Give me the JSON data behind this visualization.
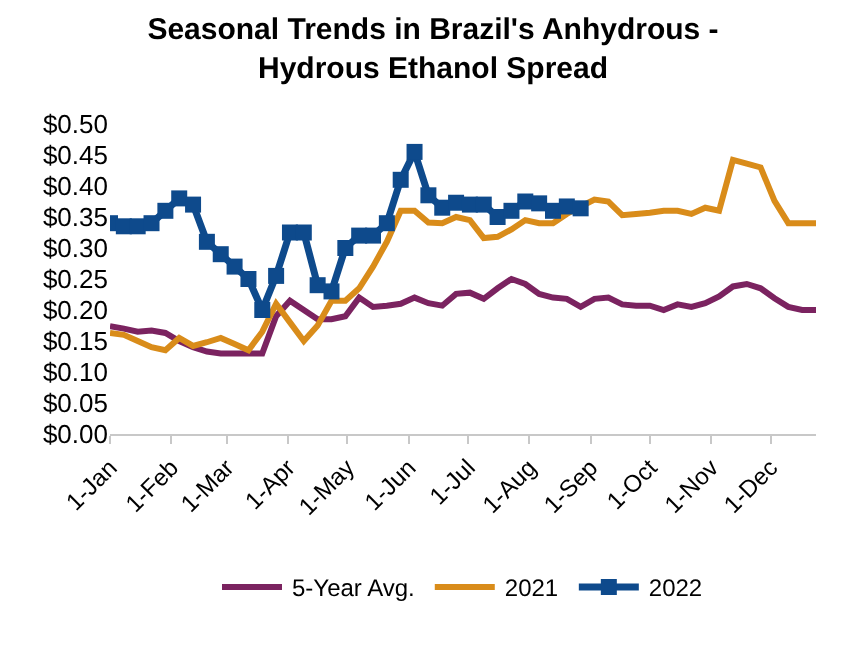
{
  "chart_data": {
    "type": "line",
    "title": "Seasonal Trends in Brazil's Anhydrous -\nHydrous Ethanol Spread",
    "x": [
      "--01-01",
      "--01-08",
      "--01-15",
      "--01-22",
      "--01-29",
      "--02-05",
      "--02-12",
      "--02-19",
      "--02-26",
      "--03-05",
      "--03-12",
      "--03-19",
      "--03-26",
      "--04-02",
      "--04-09",
      "--04-16",
      "--04-23",
      "--04-30",
      "--05-07",
      "--05-14",
      "--05-21",
      "--05-28",
      "--06-04",
      "--06-11",
      "--06-18",
      "--06-25",
      "--07-02",
      "--07-09",
      "--07-16",
      "--07-23",
      "--07-30",
      "--08-06",
      "--08-13",
      "--08-20",
      "--08-27",
      "--09-03",
      "--09-10",
      "--09-17",
      "--09-24",
      "--10-01",
      "--10-08",
      "--10-15",
      "--10-22",
      "--10-29",
      "--11-05",
      "--11-12",
      "--11-19",
      "--11-26",
      "--12-03",
      "--12-10",
      "--12-17",
      "--12-24"
    ],
    "series": [
      {
        "name": "5-Year Avg.",
        "color": "#7b2360",
        "marker": "none",
        "values": [
          0.174,
          0.17,
          0.165,
          0.167,
          0.163,
          0.15,
          0.14,
          0.133,
          0.13,
          0.13,
          0.13,
          0.13,
          0.19,
          0.215,
          0.2,
          0.185,
          0.185,
          0.19,
          0.22,
          0.205,
          0.207,
          0.21,
          0.22,
          0.211,
          0.207,
          0.226,
          0.228,
          0.218,
          0.235,
          0.25,
          0.242,
          0.226,
          0.22,
          0.218,
          0.205,
          0.218,
          0.22,
          0.209,
          0.207,
          0.207,
          0.2,
          0.209,
          0.205,
          0.211,
          0.222,
          0.238,
          0.242,
          0.235,
          0.219,
          0.205,
          0.2,
          0.2
        ]
      },
      {
        "name": "2021",
        "color": "#d98c1a",
        "marker": "none",
        "values": [
          0.163,
          0.16,
          0.15,
          0.14,
          0.135,
          0.155,
          0.142,
          0.148,
          0.155,
          0.145,
          0.135,
          0.165,
          0.21,
          0.18,
          0.15,
          0.175,
          0.215,
          0.215,
          0.235,
          0.27,
          0.31,
          0.36,
          0.36,
          0.341,
          0.34,
          0.35,
          0.345,
          0.316,
          0.318,
          0.33,
          0.345,
          0.34,
          0.34,
          0.355,
          0.367,
          0.378,
          0.375,
          0.353,
          0.355,
          0.357,
          0.36,
          0.36,
          0.355,
          0.365,
          0.36,
          0.442,
          0.436,
          0.43,
          0.376,
          0.34,
          0.34,
          0.34
        ]
      },
      {
        "name": "2022",
        "color": "#0e4a8c",
        "marker": "square",
        "x": [
          "--01-01",
          "--01-08",
          "--01-15",
          "--01-22",
          "--01-29",
          "--02-05",
          "--02-12",
          "--02-19",
          "--02-26",
          "--03-05",
          "--03-12",
          "--03-19",
          "--03-26",
          "--04-02",
          "--04-09",
          "--04-16",
          "--04-23",
          "--04-30",
          "--05-07",
          "--05-14",
          "--05-21",
          "--05-28",
          "--06-04",
          "--06-11",
          "--06-18",
          "--06-25",
          "--07-02",
          "--07-09",
          "--07-16",
          "--07-23",
          "--07-30",
          "--08-06",
          "--08-13",
          "--08-20",
          "--08-27"
        ],
        "values": [
          0.34,
          0.335,
          0.335,
          0.34,
          0.36,
          0.38,
          0.37,
          0.31,
          0.29,
          0.27,
          0.25,
          0.2,
          0.255,
          0.325,
          0.325,
          0.24,
          0.23,
          0.3,
          0.32,
          0.32,
          0.34,
          0.41,
          0.455,
          0.385,
          0.365,
          0.373,
          0.37,
          0.37,
          0.35,
          0.36,
          0.375,
          0.372,
          0.36,
          0.367,
          0.364
        ]
      }
    ],
    "xlim": [
      "--01-01",
      "--12-24"
    ],
    "xticks": [
      {
        "value": "--01-01",
        "label": "1-Jan"
      },
      {
        "value": "--02-01",
        "label": "1-Feb"
      },
      {
        "value": "--03-01",
        "label": "1-Mar"
      },
      {
        "value": "--04-01",
        "label": "1-Apr"
      },
      {
        "value": "--05-01",
        "label": "1-May"
      },
      {
        "value": "--06-01",
        "label": "1-Jun"
      },
      {
        "value": "--07-01",
        "label": "1-Jul"
      },
      {
        "value": "--08-01",
        "label": "1-Aug"
      },
      {
        "value": "--09-01",
        "label": "1-Sep"
      },
      {
        "value": "--10-01",
        "label": "1-Oct"
      },
      {
        "value": "--11-01",
        "label": "1-Nov"
      },
      {
        "value": "--12-01",
        "label": "1-Dec"
      }
    ],
    "ylim": [
      0,
      0.5
    ],
    "yticks": [
      {
        "value": 0,
        "label": "$0.00"
      },
      {
        "value": 0.05,
        "label": "$0.05"
      },
      {
        "value": 0.1,
        "label": "$0.10"
      },
      {
        "value": 0.15,
        "label": "$0.15"
      },
      {
        "value": 0.2,
        "label": "$0.20"
      },
      {
        "value": 0.25,
        "label": "$0.25"
      },
      {
        "value": 0.3,
        "label": "$0.30"
      },
      {
        "value": 0.35,
        "label": "$0.35"
      },
      {
        "value": 0.4,
        "label": "$0.40"
      },
      {
        "value": 0.45,
        "label": "$0.45"
      },
      {
        "value": 0.5,
        "label": "$0.50"
      }
    ],
    "grid": false,
    "legend": "bottom"
  }
}
